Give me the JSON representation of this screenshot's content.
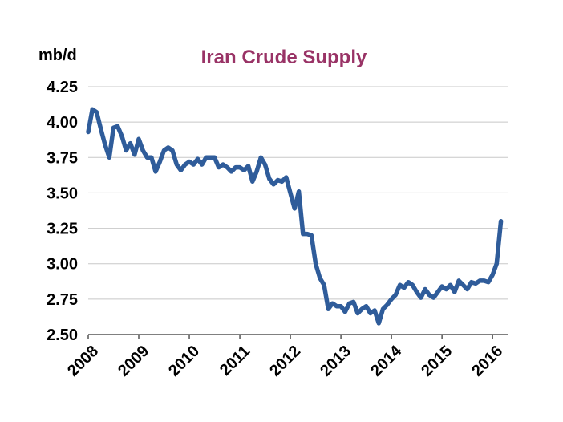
{
  "chart_data": {
    "type": "line",
    "title": "Iran Crude Supply",
    "ylabel": "mb/d",
    "xlabel": "",
    "ylim": [
      2.5,
      4.25
    ],
    "xlim": [
      2008.0,
      2016.3
    ],
    "yticks": [
      "2.50",
      "2.75",
      "3.00",
      "3.25",
      "3.50",
      "3.75",
      "4.00",
      "4.25"
    ],
    "ytick_values": [
      2.5,
      2.75,
      3.0,
      3.25,
      3.5,
      3.75,
      4.0,
      4.25
    ],
    "xticks": [
      "2008",
      "2009",
      "2010",
      "2011",
      "2012",
      "2013",
      "2014",
      "2015",
      "2016"
    ],
    "xtick_values": [
      2008,
      2009,
      2010,
      2011,
      2012,
      2013,
      2014,
      2015,
      2016
    ],
    "grid": "horizontal",
    "legend": "none",
    "line_color": "#2f5c9a",
    "title_color": "#993366",
    "series": [
      {
        "x": [
          2008.0,
          2008.083,
          2008.167,
          2008.25,
          2008.333,
          2008.417,
          2008.5,
          2008.583,
          2008.667,
          2008.75,
          2008.833,
          2008.917,
          2009.0,
          2009.083,
          2009.167,
          2009.25,
          2009.333,
          2009.417,
          2009.5,
          2009.583,
          2009.667,
          2009.75,
          2009.833,
          2009.917,
          2010.0,
          2010.083,
          2010.167,
          2010.25,
          2010.333,
          2010.417,
          2010.5,
          2010.583,
          2010.667,
          2010.75,
          2010.833,
          2010.917,
          2011.0,
          2011.083,
          2011.167,
          2011.25,
          2011.333,
          2011.417,
          2011.5,
          2011.583,
          2011.667,
          2011.75,
          2011.833,
          2011.917,
          2012.0,
          2012.083,
          2012.167,
          2012.25,
          2012.333,
          2012.417,
          2012.5,
          2012.583,
          2012.667,
          2012.75,
          2012.833,
          2012.917,
          2013.0,
          2013.083,
          2013.167,
          2013.25,
          2013.333,
          2013.417,
          2013.5,
          2013.583,
          2013.667,
          2013.75,
          2013.833,
          2013.917,
          2014.0,
          2014.083,
          2014.167,
          2014.25,
          2014.333,
          2014.417,
          2014.5,
          2014.583,
          2014.667,
          2014.75,
          2014.833,
          2014.917,
          2015.0,
          2015.083,
          2015.167,
          2015.25,
          2015.333,
          2015.417,
          2015.5,
          2015.583,
          2015.667,
          2015.75,
          2015.833,
          2015.917,
          2016.0,
          2016.083,
          2016.167
        ],
        "values": [
          3.93,
          4.09,
          4.07,
          3.95,
          3.84,
          3.75,
          3.96,
          3.97,
          3.9,
          3.8,
          3.85,
          3.77,
          3.88,
          3.8,
          3.75,
          3.75,
          3.65,
          3.72,
          3.8,
          3.82,
          3.8,
          3.7,
          3.66,
          3.7,
          3.72,
          3.7,
          3.74,
          3.7,
          3.75,
          3.75,
          3.75,
          3.68,
          3.7,
          3.68,
          3.65,
          3.68,
          3.68,
          3.66,
          3.69,
          3.58,
          3.65,
          3.75,
          3.7,
          3.6,
          3.56,
          3.59,
          3.58,
          3.61,
          3.5,
          3.39,
          3.51,
          3.21,
          3.21,
          3.2,
          3.0,
          2.9,
          2.85,
          2.68,
          2.72,
          2.7,
          2.7,
          2.66,
          2.72,
          2.73,
          2.65,
          2.68,
          2.7,
          2.65,
          2.67,
          2.58,
          2.68,
          2.71,
          2.75,
          2.78,
          2.85,
          2.83,
          2.87,
          2.85,
          2.8,
          2.76,
          2.82,
          2.78,
          2.76,
          2.8,
          2.84,
          2.82,
          2.85,
          2.8,
          2.88,
          2.85,
          2.82,
          2.87,
          2.86,
          2.88,
          2.88,
          2.87,
          2.92,
          3.0,
          3.3
        ]
      }
    ]
  }
}
